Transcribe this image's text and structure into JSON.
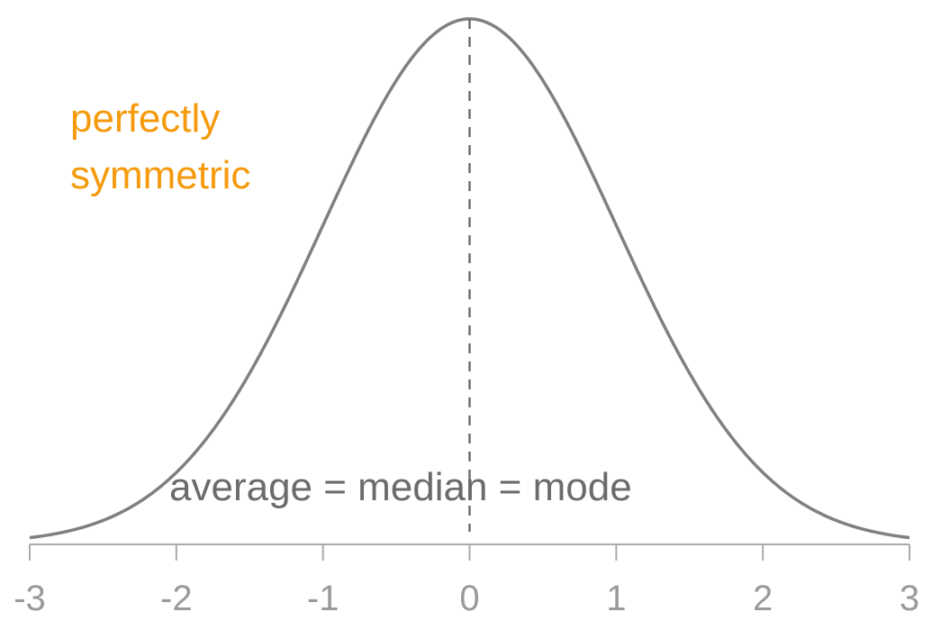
{
  "chart_data": {
    "type": "line",
    "title": "",
    "xlabel": "",
    "ylabel": "",
    "xlim": [
      -3,
      3
    ],
    "ylim": [
      0,
      0.3989
    ],
    "x_ticks": [
      -3,
      -2,
      -1,
      0,
      1,
      2,
      3
    ],
    "x_tick_labels": [
      "-3",
      "-2",
      "-1",
      "0",
      "1",
      "2",
      "3"
    ],
    "grid": false,
    "series": [
      {
        "distribution": "standard normal",
        "mean": 0,
        "sd": 1,
        "x": [
          -3,
          -2.5,
          -2,
          -1.5,
          -1,
          -0.5,
          0,
          0.5,
          1,
          1.5,
          2,
          2.5,
          3
        ],
        "y": [
          0.0044,
          0.0175,
          0.054,
          0.1295,
          0.242,
          0.3521,
          0.3989,
          0.3521,
          0.242,
          0.1295,
          0.054,
          0.0175,
          0.0044
        ]
      }
    ],
    "reference_line": {
      "x": 0,
      "style": "dashed"
    },
    "annotations": {
      "symmetric_line1": "perfectly",
      "symmetric_line2": "symmetric",
      "stats": "average = median = mode"
    },
    "colors": {
      "curve": "#808080",
      "reference_line": "#6e6e6e",
      "axis": "#aaaaaa",
      "tick_label": "#9a9a9a",
      "annotation_symmetric": "#f59a0c",
      "annotation_stats": "#6b6b6b"
    }
  }
}
